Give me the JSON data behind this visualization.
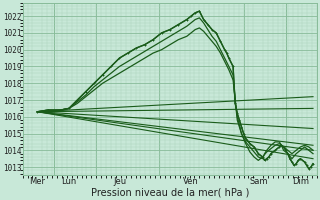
{
  "background_color": "#c8e8d8",
  "grid_major_color": "#88bb99",
  "grid_minor_color": "#aad4bb",
  "line_color": "#1a5c1a",
  "ylabel_values": [
    1013,
    1014,
    1015,
    1016,
    1017,
    1018,
    1019,
    1020,
    1021,
    1022
  ],
  "ylim": [
    1012.5,
    1022.8
  ],
  "xlim": [
    0,
    7.0
  ],
  "xtick_positions": [
    0.35,
    1.1,
    2.3,
    4.0,
    5.6,
    6.6
  ],
  "xtick_labels": [
    "Mer",
    "Lun",
    "Jeu",
    "Ven",
    "Sam",
    "Dim"
  ],
  "xlabel": "Pression niveau de la mer( hPa )",
  "vlines": [
    0.75,
    1.75,
    3.25,
    5.25,
    6.25
  ],
  "straight_lines": [
    [
      0.35,
      1016.3,
      6.9,
      1017.2
    ],
    [
      0.35,
      1016.3,
      6.9,
      1016.5
    ],
    [
      0.35,
      1016.3,
      6.9,
      1015.3
    ],
    [
      0.35,
      1016.3,
      6.9,
      1014.3
    ],
    [
      0.35,
      1016.3,
      6.9,
      1013.5
    ],
    [
      0.35,
      1016.3,
      6.9,
      1014.0
    ]
  ],
  "curved_series": [
    [
      0.35,
      1016.3,
      0.6,
      1016.4,
      0.9,
      1016.4,
      1.1,
      1016.5,
      1.3,
      1017.0,
      1.5,
      1017.5,
      1.7,
      1018.0,
      1.9,
      1018.5,
      2.1,
      1019.0,
      2.3,
      1019.5,
      2.5,
      1019.8,
      2.7,
      1020.1,
      2.9,
      1020.3,
      3.1,
      1020.6,
      3.3,
      1021.0,
      3.5,
      1021.2,
      3.7,
      1021.5,
      3.9,
      1021.8,
      4.0,
      1022.0,
      4.1,
      1022.2,
      4.2,
      1022.3,
      4.3,
      1021.8,
      4.4,
      1021.5,
      4.5,
      1021.2,
      4.6,
      1021.0,
      4.7,
      1020.5,
      4.8,
      1020.0,
      4.85,
      1019.8,
      4.9,
      1019.5,
      5.0,
      1019.0,
      5.05,
      1016.8,
      5.1,
      1016.2,
      5.15,
      1015.8,
      5.2,
      1015.4,
      5.25,
      1015.0,
      5.3,
      1014.7,
      5.4,
      1014.4,
      5.5,
      1014.2,
      5.6,
      1013.8,
      5.7,
      1013.6,
      5.75,
      1013.4,
      5.8,
      1013.5,
      5.85,
      1013.6,
      5.9,
      1013.8,
      6.0,
      1014.0,
      6.1,
      1014.2,
      6.15,
      1014.3,
      6.2,
      1014.2,
      6.25,
      1014.0,
      6.3,
      1013.8,
      6.35,
      1013.5,
      6.4,
      1013.3,
      6.45,
      1013.1,
      6.5,
      1013.2,
      6.55,
      1013.4,
      6.6,
      1013.5,
      6.7,
      1013.3,
      6.75,
      1013.1,
      6.8,
      1012.9,
      6.85,
      1013.0,
      6.9,
      1013.2
    ],
    [
      0.35,
      1016.3,
      0.6,
      1016.4,
      0.9,
      1016.4,
      1.1,
      1016.5,
      1.3,
      1016.9,
      1.5,
      1017.3,
      1.7,
      1017.8,
      1.9,
      1018.2,
      2.1,
      1018.6,
      2.3,
      1019.0,
      2.5,
      1019.3,
      2.7,
      1019.6,
      2.9,
      1019.9,
      3.1,
      1020.2,
      3.3,
      1020.5,
      3.5,
      1020.8,
      3.7,
      1021.1,
      3.9,
      1021.4,
      4.0,
      1021.6,
      4.1,
      1021.8,
      4.2,
      1021.9,
      4.3,
      1021.6,
      4.4,
      1021.2,
      4.5,
      1020.8,
      4.6,
      1020.5,
      4.7,
      1020.0,
      4.8,
      1019.5,
      4.9,
      1019.0,
      5.0,
      1018.5,
      5.05,
      1017.0,
      5.1,
      1016.0,
      5.15,
      1015.5,
      5.2,
      1015.0,
      5.3,
      1014.5,
      5.4,
      1014.2,
      5.5,
      1013.9,
      5.6,
      1013.6,
      5.7,
      1013.5,
      5.75,
      1013.8,
      5.8,
      1014.0,
      5.9,
      1014.3,
      6.0,
      1014.5,
      6.1,
      1014.5,
      6.15,
      1014.3,
      6.2,
      1014.0,
      6.3,
      1013.8,
      6.4,
      1013.5,
      6.5,
      1013.8,
      6.6,
      1014.0,
      6.7,
      1014.2,
      6.8,
      1014.0,
      6.9,
      1013.8
    ],
    [
      0.35,
      1016.3,
      0.6,
      1016.3,
      0.9,
      1016.4,
      1.1,
      1016.5,
      1.3,
      1016.8,
      1.5,
      1017.2,
      1.7,
      1017.6,
      1.9,
      1018.0,
      2.1,
      1018.3,
      2.3,
      1018.6,
      2.5,
      1018.9,
      2.7,
      1019.2,
      2.9,
      1019.5,
      3.1,
      1019.8,
      3.3,
      1020.0,
      3.5,
      1020.3,
      3.7,
      1020.6,
      3.9,
      1020.8,
      4.0,
      1021.0,
      4.1,
      1021.2,
      4.2,
      1021.3,
      4.3,
      1021.1,
      4.4,
      1020.8,
      4.5,
      1020.5,
      4.6,
      1020.2,
      4.7,
      1019.8,
      4.8,
      1019.3,
      4.9,
      1018.8,
      5.0,
      1018.2,
      5.05,
      1017.0,
      5.1,
      1015.8,
      5.2,
      1015.0,
      5.3,
      1014.4,
      5.4,
      1013.9,
      5.5,
      1013.6,
      5.6,
      1013.4,
      5.7,
      1013.6,
      5.8,
      1013.9,
      5.9,
      1014.1,
      6.0,
      1014.3,
      6.1,
      1014.4,
      6.2,
      1014.2,
      6.3,
      1014.0,
      6.4,
      1013.8,
      6.5,
      1014.0,
      6.6,
      1014.2,
      6.7,
      1014.3,
      6.8,
      1014.2,
      6.9,
      1014.0
    ]
  ]
}
